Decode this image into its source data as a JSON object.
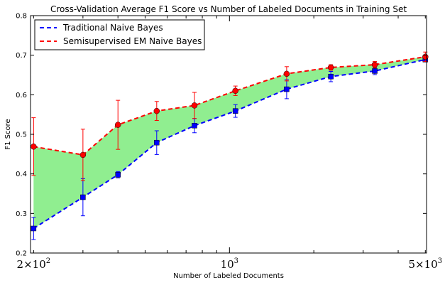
{
  "chart_data": {
    "type": "line",
    "title": "Cross-Validation Average F1 Score vs Number of Labeled Documents in Training Set",
    "xlabel": "Number of Labeled Documents",
    "ylabel": "F1 Score",
    "xscale": "log",
    "xlim": [
      195,
      5050
    ],
    "ylim": [
      0.2,
      0.8
    ],
    "yticks": [
      "0.2",
      "0.3",
      "0.4",
      "0.5",
      "0.6",
      "0.7",
      "0.8"
    ],
    "xticks": [
      {
        "value": 200,
        "mantissa": "2",
        "base": "10",
        "exponent": "2"
      },
      {
        "value": 1000,
        "mantissa": "",
        "base": "10",
        "exponent": "3"
      },
      {
        "value": 5000,
        "mantissa": "5",
        "base": "10",
        "exponent": "3"
      }
    ],
    "x": [
      200,
      300,
      400,
      550,
      750,
      1050,
      1600,
      2300,
      3300,
      5000
    ],
    "series": [
      {
        "name": "Traditional Naive Bayes",
        "color": "#0000ff",
        "marker": "square",
        "linestyle": "dashed",
        "values": [
          0.262,
          0.341,
          0.398,
          0.479,
          0.522,
          0.559,
          0.614,
          0.646,
          0.66,
          0.689
        ],
        "errors": [
          0.028,
          0.047,
          0.008,
          0.03,
          0.018,
          0.016,
          0.024,
          0.013,
          0.009,
          0.006
        ]
      },
      {
        "name": "Semisupervised EM Naive Bayes",
        "color": "#ff0000",
        "marker": "circle",
        "linestyle": "dashed",
        "values": [
          0.469,
          0.448,
          0.524,
          0.559,
          0.573,
          0.61,
          0.653,
          0.669,
          0.676,
          0.696
        ],
        "errors": [
          0.073,
          0.065,
          0.062,
          0.024,
          0.033,
          0.012,
          0.018,
          0.007,
          0.008,
          0.012
        ]
      }
    ],
    "fill_between_color": "#90ee90",
    "legend_position": "top-left",
    "grid": false
  }
}
